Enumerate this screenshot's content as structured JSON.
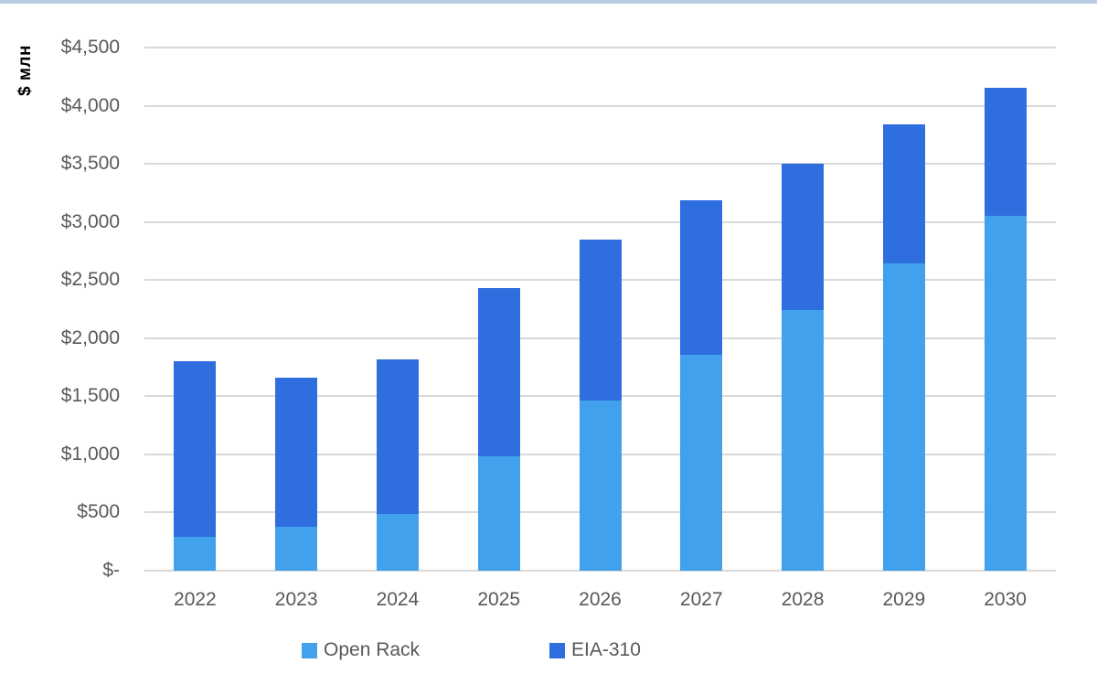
{
  "page": {
    "top_border_color": "#b9cde6",
    "background": "#ffffff"
  },
  "chart_data": {
    "type": "bar",
    "variant": "stacked-vertical",
    "title": "",
    "ylabel": "$ млн",
    "xlabel": "",
    "categories": [
      "2022",
      "2023",
      "2024",
      "2025",
      "2026",
      "2027",
      "2028",
      "2029",
      "2030"
    ],
    "series": [
      {
        "name": "Open Rack",
        "color": "#41a1ec",
        "values": [
          290,
          380,
          490,
          980,
          1460,
          1860,
          2240,
          2640,
          3050
        ]
      },
      {
        "name": "EIA-310",
        "color": "#2e6ede",
        "values": [
          1510,
          1280,
          1330,
          1450,
          1390,
          1330,
          1260,
          1200,
          1100
        ]
      }
    ],
    "stacked_totals": [
      1800,
      1660,
      1820,
      2430,
      2850,
      3190,
      3500,
      3840,
      4150
    ],
    "y_ticks": [
      {
        "label": "$4,500",
        "value": 4500
      },
      {
        "label": "$4,000",
        "value": 4000
      },
      {
        "label": "$3,500",
        "value": 3500
      },
      {
        "label": "$3,000",
        "value": 3000
      },
      {
        "label": "$2,500",
        "value": 2500
      },
      {
        "label": "$2,000",
        "value": 2000
      },
      {
        "label": "$1,500",
        "value": 1500
      },
      {
        "label": "$1,000",
        "value": 1000
      },
      {
        "label": "$500",
        "value": 500
      },
      {
        "label": "$-",
        "value": 0
      }
    ],
    "ylim": [
      0,
      4500
    ],
    "grid": true,
    "grid_color": "#d9d9d9",
    "axis_text_color": "#595959",
    "legend_position": "bottom"
  }
}
